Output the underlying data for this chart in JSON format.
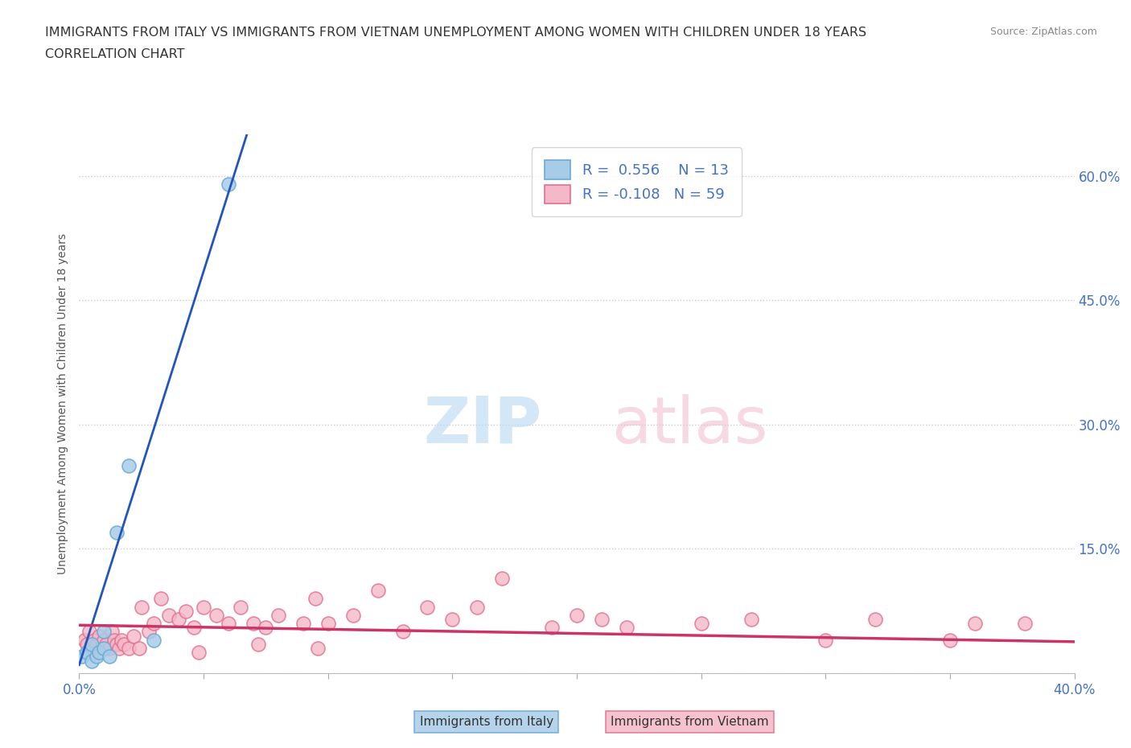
{
  "title_line1": "IMMIGRANTS FROM ITALY VS IMMIGRANTS FROM VIETNAM UNEMPLOYMENT AMONG WOMEN WITH CHILDREN UNDER 18 YEARS",
  "title_line2": "CORRELATION CHART",
  "source": "Source: ZipAtlas.com",
  "ylabel": "Unemployment Among Women with Children Under 18 years",
  "xlim": [
    0.0,
    0.4
  ],
  "ylim": [
    0.0,
    0.65
  ],
  "xticks": [
    0.0,
    0.05,
    0.1,
    0.15,
    0.2,
    0.25,
    0.3,
    0.35,
    0.4
  ],
  "yticks_right": [
    0.0,
    0.15,
    0.3,
    0.45,
    0.6
  ],
  "ytick_labels_right": [
    "",
    "15.0%",
    "30.0%",
    "45.0%",
    "60.0%"
  ],
  "italy_color": "#a8cce8",
  "italy_edge_color": "#6aaad4",
  "vietnam_color": "#f5b8c8",
  "vietnam_edge_color": "#e07090",
  "italy_trend_color": "#2255bb",
  "vietnam_trend_color": "#cc3366",
  "legend_R_italy": "R =  0.556",
  "legend_N_italy": "N = 13",
  "legend_R_vietnam": "R = -0.108",
  "legend_N_vietnam": "N = 59",
  "italy_x": [
    0.001,
    0.003,
    0.005,
    0.005,
    0.007,
    0.008,
    0.01,
    0.01,
    0.012,
    0.015,
    0.02,
    0.03,
    0.06
  ],
  "italy_y": [
    0.02,
    0.025,
    0.015,
    0.035,
    0.02,
    0.025,
    0.03,
    0.05,
    0.02,
    0.17,
    0.25,
    0.04,
    0.59
  ],
  "vietnam_x": [
    0.002,
    0.003,
    0.004,
    0.005,
    0.006,
    0.007,
    0.008,
    0.009,
    0.01,
    0.011,
    0.012,
    0.013,
    0.014,
    0.015,
    0.016,
    0.017,
    0.018,
    0.02,
    0.022,
    0.025,
    0.028,
    0.03,
    0.033,
    0.036,
    0.04,
    0.043,
    0.046,
    0.05,
    0.055,
    0.06,
    0.065,
    0.07,
    0.075,
    0.08,
    0.09,
    0.095,
    0.1,
    0.11,
    0.12,
    0.13,
    0.14,
    0.15,
    0.16,
    0.17,
    0.19,
    0.2,
    0.21,
    0.22,
    0.25,
    0.27,
    0.3,
    0.32,
    0.35,
    0.36,
    0.38,
    0.024,
    0.048,
    0.072,
    0.096
  ],
  "vietnam_y": [
    0.04,
    0.035,
    0.05,
    0.03,
    0.04,
    0.035,
    0.045,
    0.03,
    0.04,
    0.035,
    0.03,
    0.05,
    0.04,
    0.035,
    0.03,
    0.04,
    0.035,
    0.03,
    0.045,
    0.08,
    0.05,
    0.06,
    0.09,
    0.07,
    0.065,
    0.075,
    0.055,
    0.08,
    0.07,
    0.06,
    0.08,
    0.06,
    0.055,
    0.07,
    0.06,
    0.09,
    0.06,
    0.07,
    0.1,
    0.05,
    0.08,
    0.065,
    0.08,
    0.115,
    0.055,
    0.07,
    0.065,
    0.055,
    0.06,
    0.065,
    0.04,
    0.065,
    0.04,
    0.06,
    0.06,
    0.03,
    0.025,
    0.035,
    0.03
  ],
  "italy_trend_slope": 9.5,
  "italy_trend_intercept": 0.01,
  "vietnam_trend_slope": -0.05,
  "vietnam_trend_intercept": 0.058,
  "background_color": "#ffffff",
  "grid_color": "#cccccc",
  "title_color": "#333333"
}
